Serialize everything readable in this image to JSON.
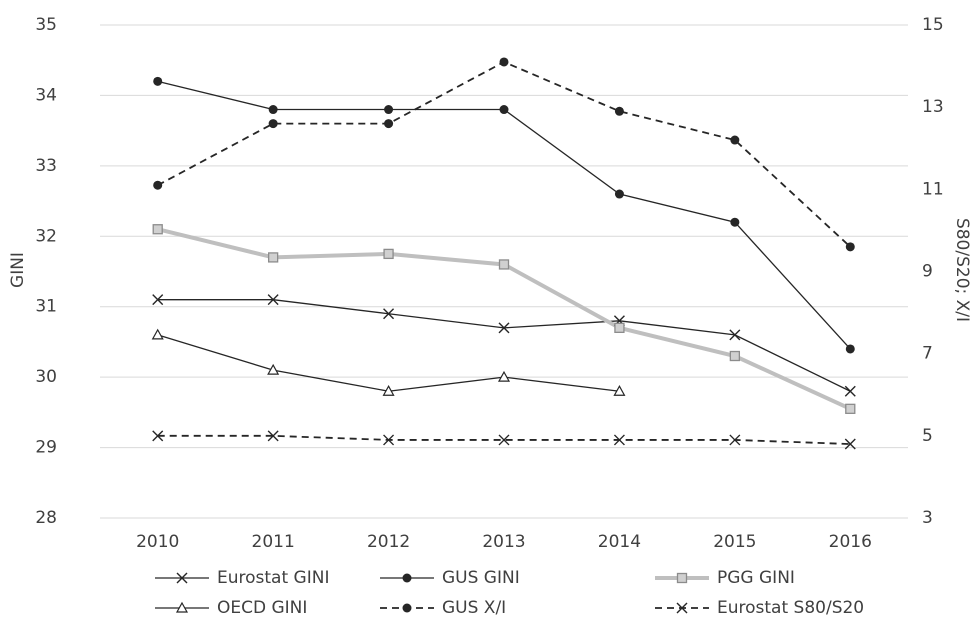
{
  "chart_data": {
    "type": "line",
    "ylabel": "GINI",
    "y2label": "S80/S20; X/I",
    "categories": [
      "2010",
      "2011",
      "2012",
      "2013",
      "2014",
      "2015",
      "2016"
    ],
    "ylim": [
      28,
      35
    ],
    "yticks": [
      28,
      29,
      30,
      31,
      32,
      33,
      34,
      35
    ],
    "y2lim": [
      3,
      15
    ],
    "y2ticks": [
      3,
      5,
      7,
      9,
      11,
      13,
      15
    ],
    "grid": true,
    "legend": "bottom",
    "series": [
      {
        "name": "Eurostat GINI",
        "color": "#262626",
        "marker": "x",
        "line_style": "solid",
        "line_width": 1.3,
        "values": [
          31.1,
          31.1,
          30.9,
          30.7,
          30.8,
          30.6,
          29.8
        ]
      },
      {
        "name": "GUS GINI",
        "color": "#262626",
        "marker": "circle",
        "line_style": "solid",
        "line_width": 1.3,
        "values": [
          34.2,
          33.8,
          33.8,
          33.8,
          32.6,
          32.2,
          30.4
        ]
      },
      {
        "name": "PGG GINI",
        "color": "#bfbfbf",
        "marker": "square",
        "line_style": "solid",
        "line_width": 4,
        "values": [
          32.1,
          31.7,
          31.75,
          31.6,
          30.7,
          30.3,
          29.55
        ]
      },
      {
        "name": "OECD GINI",
        "color": "#262626",
        "marker": "triangle",
        "line_style": "solid",
        "line_width": 1.3,
        "values": [
          30.6,
          30.1,
          29.8,
          30.0,
          29.8,
          null,
          null
        ]
      },
      {
        "name": "GUS X/I",
        "color": "#262626",
        "marker": "circle",
        "line_style": "dashed",
        "line_width": 1.8,
        "axis": "y2",
        "values": [
          11.1,
          12.6,
          12.6,
          14.1,
          12.9,
          12.2,
          9.6
        ]
      },
      {
        "name": "Eurostat S80/S20",
        "color": "#262626",
        "marker": "x",
        "line_style": "dashed",
        "line_width": 1.8,
        "axis": "y2",
        "values": [
          5.0,
          5.0,
          4.9,
          4.9,
          4.9,
          4.9,
          4.8
        ]
      }
    ]
  }
}
